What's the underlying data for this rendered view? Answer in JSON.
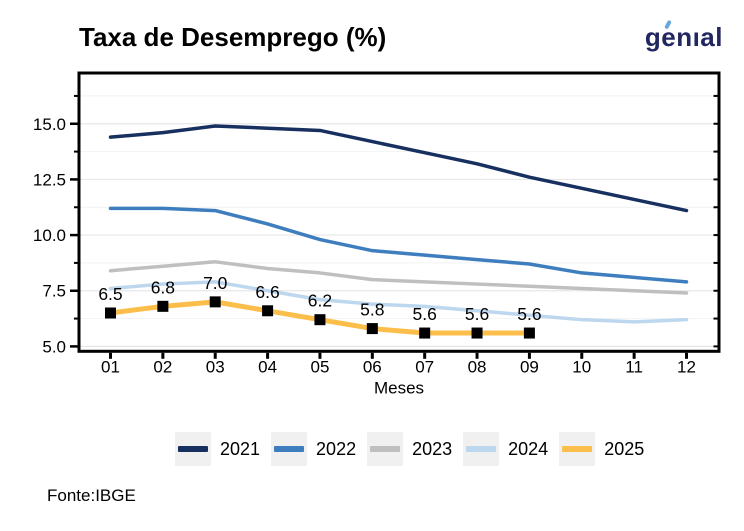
{
  "header": {
    "title": "Taxa de Desemprego (%)"
  },
  "logo": {
    "text": "genıal",
    "color": "#232761",
    "accent_color": "#6BA7DC"
  },
  "footer": {
    "source": "Fonte:IBGE"
  },
  "chart_data": {
    "type": "line",
    "title": "Taxa de Desemprego (%)",
    "xlabel": "Meses",
    "ylabel": "",
    "x_categories": [
      "01",
      "02",
      "03",
      "04",
      "05",
      "06",
      "07",
      "08",
      "09",
      "10",
      "11",
      "12"
    ],
    "ylim": [
      4.78,
      17.28
    ],
    "yticks_major": [
      5.0,
      7.5,
      10.0,
      12.5,
      15.0
    ],
    "ytick_labels": [
      "5.0",
      "7.5",
      "10.0",
      "12.5",
      "15.0"
    ],
    "yticks_minor": [
      6.25,
      8.75,
      11.25,
      13.75,
      16.25
    ],
    "grid": "horizontal",
    "legend_position": "bottom",
    "frame_color": "#000000",
    "grid_major_color": "#e7e7e7",
    "grid_minor_color": "#f2f2f2",
    "series": [
      {
        "name": "2021",
        "color": "#17305F",
        "line_width": 3.5,
        "values": [
          14.4,
          14.6,
          14.9,
          14.8,
          14.7,
          14.2,
          13.7,
          13.2,
          12.6,
          12.1,
          11.6,
          11.1
        ]
      },
      {
        "name": "2022",
        "color": "#3E7EBE",
        "line_width": 3.5,
        "values": [
          11.2,
          11.2,
          11.1,
          10.5,
          9.8,
          9.3,
          9.1,
          8.9,
          8.7,
          8.3,
          8.1,
          7.9
        ]
      },
      {
        "name": "2023",
        "color": "#BFBFBF",
        "line_width": 3.5,
        "values": [
          8.4,
          8.6,
          8.8,
          8.5,
          8.3,
          8.0,
          7.9,
          7.8,
          7.7,
          7.6,
          7.5,
          7.4
        ]
      },
      {
        "name": "2024",
        "color": "#BDD7EE",
        "line_width": 3.5,
        "values": [
          7.6,
          7.8,
          7.9,
          7.5,
          7.1,
          6.9,
          6.8,
          6.6,
          6.4,
          6.2,
          6.1,
          6.2
        ]
      },
      {
        "name": "2025",
        "color": "#FBBE4B",
        "line_width": 5,
        "marker": "square",
        "marker_color": "#000000",
        "marker_size": 11,
        "values": [
          6.5,
          6.8,
          7.0,
          6.6,
          6.2,
          5.8,
          5.6,
          5.6,
          5.6
        ],
        "data_labels": [
          "6.5",
          "6.8",
          "7.0",
          "6.6",
          "6.2",
          "5.8",
          "5.6",
          "5.6",
          "5.6"
        ]
      }
    ]
  }
}
